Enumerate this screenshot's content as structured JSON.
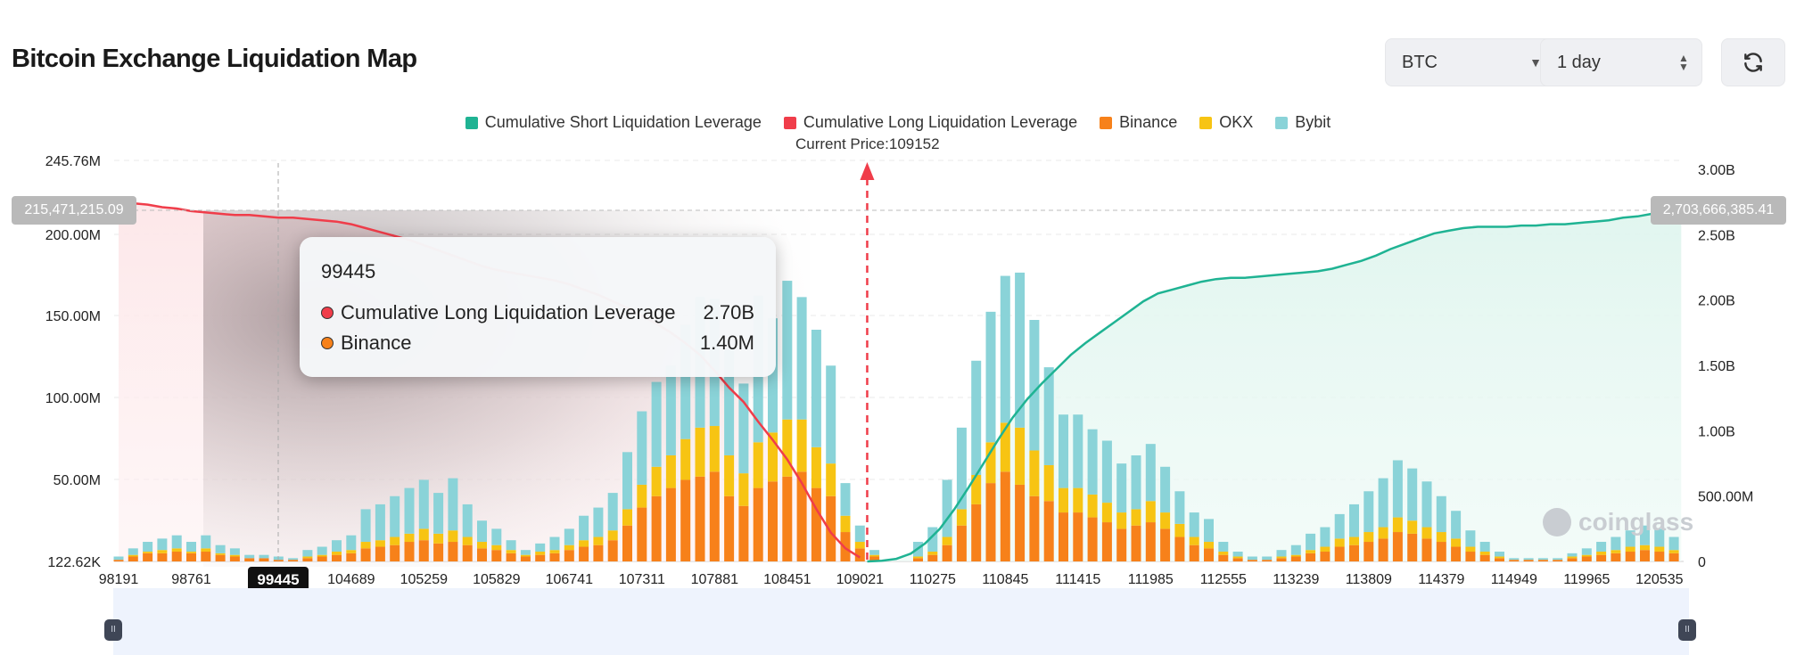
{
  "header": {
    "title": "Bitcoin Exchange Liquidation Map",
    "coin": "BTC",
    "period": "1 day"
  },
  "legend": {
    "short": "Cumulative Short Liquidation Leverage",
    "long": "Cumulative Long Liquidation Leverage",
    "binance": "Binance",
    "okx": "OKX",
    "bybit": "Bybit"
  },
  "current_price_label": "Current Price:109152",
  "tooltip": {
    "title": "99445",
    "rows": [
      {
        "name": "Cumulative Long Liquidation Leverage",
        "value": "2.70B"
      },
      {
        "name": "Binance",
        "value": "1.40M"
      }
    ]
  },
  "crosshair": {
    "x_label": "99445",
    "left_value": "215,471,215.09",
    "right_value": "2,703,666,385.41"
  },
  "watermark": "coinglass",
  "colors": {
    "short": "#1fb393",
    "long": "#f03d4a",
    "binance": "#f7811a",
    "okx": "#f7c413",
    "bybit": "#8ad3d8"
  },
  "chart_data": {
    "type": "bar",
    "title": "Bitcoin Exchange Liquidation Map",
    "current_price": 109152,
    "current_price_index": 51.5,
    "y_left": {
      "ticks": [
        "245.76M",
        "200.00M",
        "150.00M",
        "100.00M",
        "50.00M",
        "122.62K"
      ],
      "range": [
        0,
        245.76
      ]
    },
    "y_right": {
      "ticks": [
        "3.00B",
        "2.50B",
        "2.00B",
        "1.50B",
        "1.00B",
        "500.00M",
        "0"
      ],
      "range": [
        0,
        3.0
      ]
    },
    "x_ticks": [
      {
        "i": 0,
        "label": "98191"
      },
      {
        "i": 5,
        "label": "98761"
      },
      {
        "i": 16,
        "label": "104689"
      },
      {
        "i": 21,
        "label": "105259"
      },
      {
        "i": 26,
        "label": "105829"
      },
      {
        "i": 31,
        "label": "106741"
      },
      {
        "i": 36,
        "label": "107311"
      },
      {
        "i": 41,
        "label": "107881"
      },
      {
        "i": 46,
        "label": "108451"
      },
      {
        "i": 51,
        "label": "109021"
      },
      {
        "i": 56,
        "label": "110275"
      },
      {
        "i": 61,
        "label": "110845"
      },
      {
        "i": 66,
        "label": "111415"
      },
      {
        "i": 71,
        "label": "111985"
      },
      {
        "i": 76,
        "label": "112555"
      },
      {
        "i": 81,
        "label": "113239"
      },
      {
        "i": 86,
        "label": "113809"
      },
      {
        "i": 91,
        "label": "114379"
      },
      {
        "i": 96,
        "label": "114949"
      },
      {
        "i": 101,
        "label": "119965"
      },
      {
        "i": 106,
        "label": "120535"
      }
    ],
    "series": [
      {
        "name": "Binance",
        "values": [
          1,
          3,
          5,
          5,
          6,
          5,
          6,
          4,
          3,
          2,
          2,
          1,
          1,
          2,
          3,
          4,
          5,
          8,
          9,
          10,
          12,
          13,
          11,
          12,
          10,
          8,
          7,
          5,
          3,
          4,
          5,
          7,
          9,
          10,
          13,
          22,
          33,
          40,
          45,
          50,
          52,
          55,
          40,
          34,
          45,
          49,
          52,
          55,
          45,
          40,
          18,
          8,
          3,
          0,
          0,
          2,
          4,
          10,
          22,
          35,
          48,
          55,
          47,
          40,
          37,
          30,
          30,
          27,
          24,
          20,
          22,
          24,
          20,
          15,
          10,
          8,
          4,
          2,
          1,
          1,
          2,
          3,
          5,
          6,
          9,
          10,
          12,
          14,
          18,
          17,
          14,
          12,
          9,
          6,
          4,
          2,
          1,
          1,
          1,
          1,
          2,
          3,
          4,
          5,
          6,
          7,
          6,
          5
        ]
      },
      {
        "name": "OKX",
        "values": [
          0,
          1,
          1,
          2,
          2,
          1,
          2,
          1,
          1,
          0,
          0,
          0,
          0,
          1,
          1,
          2,
          2,
          4,
          4,
          5,
          5,
          7,
          6,
          7,
          5,
          4,
          3,
          2,
          1,
          2,
          2,
          3,
          4,
          5,
          6,
          10,
          14,
          18,
          20,
          25,
          30,
          28,
          25,
          20,
          28,
          30,
          35,
          32,
          25,
          20,
          10,
          4,
          1,
          0,
          0,
          1,
          2,
          5,
          10,
          18,
          25,
          30,
          35,
          28,
          22,
          15,
          15,
          14,
          12,
          10,
          10,
          13,
          10,
          8,
          5,
          4,
          2,
          1,
          0,
          0,
          1,
          1,
          2,
          3,
          5,
          5,
          6,
          7,
          9,
          8,
          7,
          6,
          5,
          3,
          2,
          1,
          0,
          0,
          0,
          0,
          1,
          1,
          2,
          2,
          3,
          3,
          3,
          2
        ]
      },
      {
        "name": "Bybit",
        "values": [
          2,
          4,
          6,
          7,
          8,
          6,
          8,
          5,
          4,
          2,
          2,
          2,
          1,
          4,
          5,
          7,
          9,
          20,
          22,
          25,
          28,
          30,
          25,
          32,
          20,
          13,
          10,
          6,
          3,
          5,
          8,
          10,
          15,
          18,
          23,
          35,
          45,
          52,
          55,
          70,
          80,
          78,
          65,
          55,
          90,
          70,
          85,
          75,
          72,
          60,
          20,
          10,
          3,
          0,
          0,
          9,
          15,
          35,
          50,
          70,
          80,
          90,
          95,
          80,
          60,
          45,
          45,
          40,
          38,
          30,
          33,
          35,
          28,
          20,
          15,
          14,
          6,
          3,
          2,
          2,
          4,
          6,
          10,
          12,
          15,
          20,
          25,
          30,
          35,
          32,
          28,
          22,
          17,
          10,
          6,
          3,
          1,
          1,
          1,
          1,
          2,
          4,
          6,
          8,
          10,
          12,
          11,
          8
        ]
      },
      {
        "name": "Cumulative Long Liquidation Leverage",
        "values": [
          2.76,
          2.74,
          2.73,
          2.71,
          2.7,
          2.68,
          2.67,
          2.66,
          2.65,
          2.65,
          2.64,
          2.63,
          2.63,
          2.62,
          2.61,
          2.6,
          2.58,
          2.55,
          2.52,
          2.49,
          2.46,
          2.42,
          2.38,
          2.34,
          2.3,
          2.26,
          2.23,
          2.21,
          2.19,
          2.17,
          2.15,
          2.12,
          2.08,
          2.04,
          1.99,
          1.94,
          1.88,
          1.82,
          1.75,
          1.67,
          1.58,
          1.46,
          1.33,
          1.22,
          1.07,
          0.93,
          0.78,
          0.6,
          0.4,
          0.22,
          0.1,
          0.03
        ]
      },
      {
        "name": "Cumulative Short Liquidation Leverage",
        "values": [
          0,
          0.005,
          0.02,
          0.06,
          0.14,
          0.25,
          0.4,
          0.57,
          0.75,
          0.93,
          1.1,
          1.24,
          1.36,
          1.47,
          1.58,
          1.67,
          1.75,
          1.83,
          1.91,
          1.99,
          2.05,
          2.08,
          2.11,
          2.14,
          2.16,
          2.17,
          2.17,
          2.18,
          2.19,
          2.2,
          2.21,
          2.22,
          2.24,
          2.27,
          2.3,
          2.34,
          2.39,
          2.43,
          2.47,
          2.51,
          2.53,
          2.55,
          2.56,
          2.56,
          2.56,
          2.57,
          2.57,
          2.58,
          2.58,
          2.59,
          2.6,
          2.61,
          2.63,
          2.64,
          2.66,
          2.68,
          2.7
        ]
      }
    ]
  }
}
